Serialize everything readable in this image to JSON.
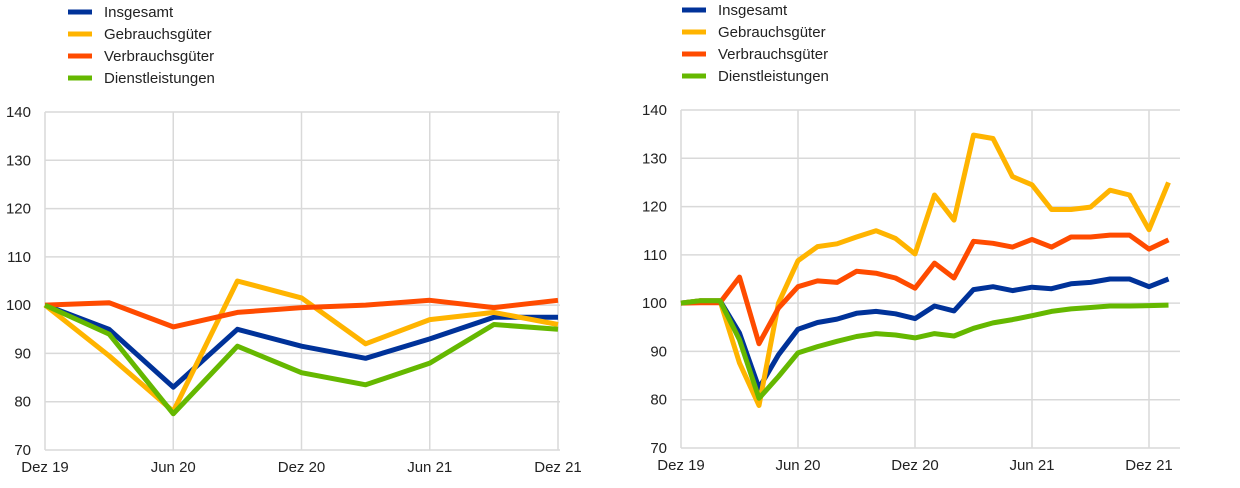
{
  "colors": {
    "Insgesamt": "#003299",
    "Gebrauchsgüter": "#ffb400",
    "Verbrauchsgüter": "#ff4b00",
    "Dienstleistungen": "#65b800"
  },
  "chart_data": [
    {
      "type": "line",
      "title": "",
      "xlabel": "",
      "ylabel": "",
      "ylim": [
        70,
        140
      ],
      "yticks": [
        "70",
        "80",
        "90",
        "100",
        "110",
        "120",
        "130",
        "140"
      ],
      "xtick_labels": [
        "Dez 19",
        "Jun 20",
        "Dez 20",
        "Jun 21",
        "Dez 21"
      ],
      "x_months": [
        0,
        3,
        6,
        9,
        12,
        15,
        18,
        21,
        24
      ],
      "xlim_months": [
        0,
        24
      ],
      "grid": true,
      "legend_position": "top-left",
      "series": [
        {
          "name": "Insgesamt",
          "values": [
            100,
            95,
            83,
            95,
            91.5,
            89,
            93,
            97.5,
            97.5
          ]
        },
        {
          "name": "Gebrauchsgüter",
          "values": [
            100,
            89.5,
            78,
            105,
            101.5,
            92,
            97,
            98.5,
            96
          ]
        },
        {
          "name": "Verbrauchsgüter",
          "values": [
            100,
            100.5,
            95.5,
            98.5,
            99.5,
            100,
            101,
            99.5,
            101
          ]
        },
        {
          "name": "Dienstleistungen",
          "values": [
            100,
            94,
            77.5,
            91.5,
            86,
            83.5,
            88,
            96,
            95
          ]
        }
      ]
    },
    {
      "type": "line",
      "title": "",
      "xlabel": "",
      "ylabel": "",
      "ylim": [
        70,
        140
      ],
      "yticks": [
        "70",
        "80",
        "90",
        "100",
        "110",
        "120",
        "130",
        "140"
      ],
      "xtick_labels": [
        "Dez 19",
        "Jun 20",
        "Dez 20",
        "Jun 21",
        "Dez 21"
      ],
      "x_months": [
        0,
        1,
        2,
        3,
        4,
        5,
        6,
        7,
        8,
        9,
        10,
        11,
        12,
        13,
        14,
        15,
        16,
        17,
        18,
        19,
        20,
        21,
        22,
        23,
        24,
        25
      ],
      "xlim_months": [
        0,
        25.6
      ],
      "grid": true,
      "legend_position": "top-left",
      "series": [
        {
          "name": "Insgesamt",
          "values": [
            100,
            100.5,
            100.5,
            93.8,
            82.4,
            89.3,
            94.6,
            96,
            96.7,
            97.9,
            98.3,
            97.8,
            96.8,
            99.4,
            98.4,
            102.8,
            103.4,
            102.6,
            103.3,
            103,
            104,
            104.3,
            105,
            105,
            103.4,
            105
          ]
        },
        {
          "name": "Gebrauchsgüter",
          "values": [
            100,
            100.5,
            100.5,
            87.6,
            78.8,
            100,
            108.8,
            111.7,
            112.3,
            113.7,
            115,
            113.4,
            110.2,
            122.4,
            117.2,
            134.8,
            134.1,
            126.2,
            124.5,
            119.4,
            119.4,
            119.9,
            123.4,
            122.4,
            115.2,
            125
          ]
        },
        {
          "name": "Verbrauchsgüter",
          "values": [
            100,
            100.1,
            100.1,
            105.4,
            91.6,
            99,
            103.4,
            104.6,
            104.3,
            106.6,
            106.2,
            105.2,
            103.1,
            108.3,
            105.2,
            112.8,
            112.4,
            111.6,
            113.2,
            111.6,
            113.7,
            113.7,
            114.1,
            114.1,
            111.2,
            113.1
          ]
        },
        {
          "name": "Dienstleistungen",
          "values": [
            100,
            100.5,
            100.5,
            92.4,
            80.3,
            84.8,
            89.7,
            91,
            92.1,
            93.1,
            93.7,
            93.4,
            92.8,
            93.7,
            93.2,
            94.8,
            95.9,
            96.6,
            97.4,
            98.3,
            98.8,
            99.1,
            99.4,
            99.4,
            99.5,
            99.6
          ]
        }
      ]
    }
  ]
}
